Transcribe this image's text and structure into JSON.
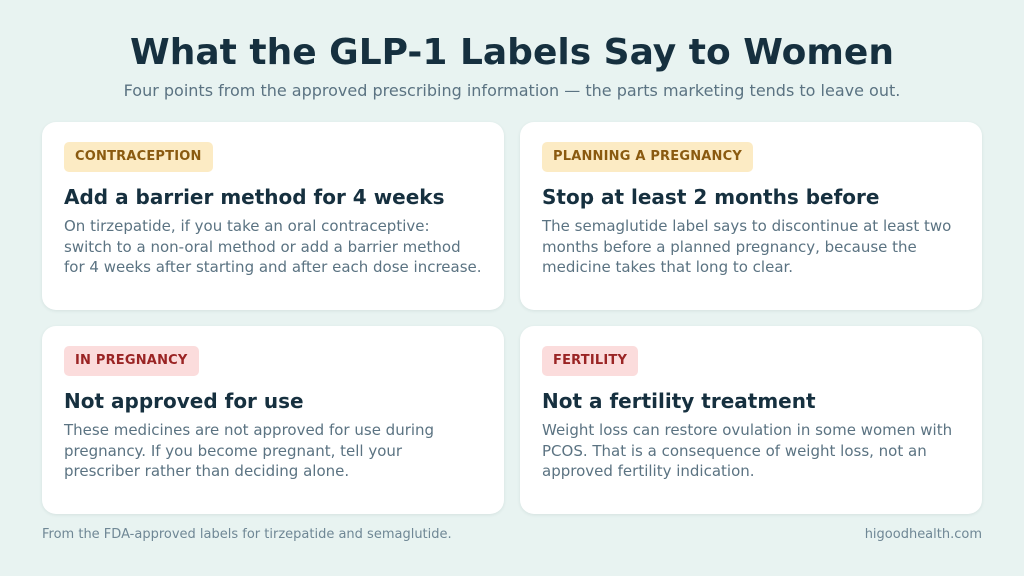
{
  "header": {
    "title": "What the GLP-1 Labels Say to Women",
    "subtitle": "Four points from the approved prescribing information — the parts marketing tends to leave out."
  },
  "cards": [
    {
      "tag": "CONTRACEPTION",
      "tag_color": "#fcebc4",
      "heading": "Add a barrier method for 4 weeks",
      "body": "On tirzepatide, if you take an oral contraceptive: switch to a non-oral method or add a barrier method for 4 weeks after starting and after each dose increase."
    },
    {
      "tag": "PLANNING A PREGNANCY",
      "tag_color": "#fcebc4",
      "heading": "Stop at least 2 months before",
      "body": "The semaglutide label says to discontinue at least two months before a planned pregnancy, because the medicine takes that long to clear."
    },
    {
      "tag": "IN PREGNANCY",
      "tag_color": "#fbdcdc",
      "heading": "Not approved for use",
      "body": "These medicines are not approved for use during pregnancy. If you become pregnant, tell your prescriber rather than deciding alone."
    },
    {
      "tag": "FERTILITY",
      "tag_color": "#fbdcdc",
      "heading": "Not a fertility treatment",
      "body": "Weight loss can restore ovulation in some women with PCOS. That is a consequence of weight loss, not an approved fertility indication."
    }
  ],
  "footer": {
    "source": "From the FDA-approved labels for tirzepatide and semaglutide.",
    "brand": "higoodhealth.com"
  }
}
